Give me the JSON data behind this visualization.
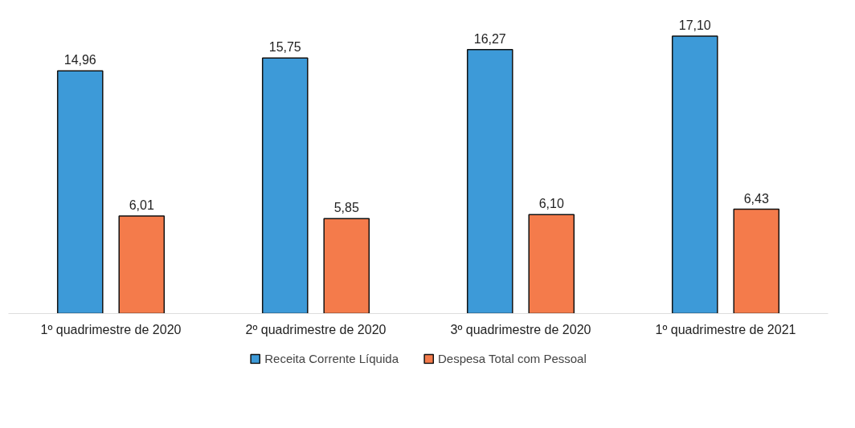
{
  "chart_data": {
    "type": "bar",
    "categories": [
      "1º quadrimestre de 2020",
      "2º quadrimestre de 2020",
      "3º quadrimestre de 2020",
      "1º quadrimestre de 2021"
    ],
    "series": [
      {
        "name": "Receita Corrente Líquida",
        "color": "#3d9ad8",
        "values": [
          14.96,
          15.75,
          16.27,
          17.1
        ],
        "value_labels": [
          "14,96",
          "15,75",
          "16,27",
          "17,10"
        ]
      },
      {
        "name": "Despesa Total com Pessoal",
        "color": "#f47b4b",
        "values": [
          6.01,
          5.85,
          6.1,
          6.43
        ],
        "value_labels": [
          "6,01",
          "5,85",
          "6,10",
          "6,43"
        ]
      }
    ],
    "legend": "bottom"
  }
}
